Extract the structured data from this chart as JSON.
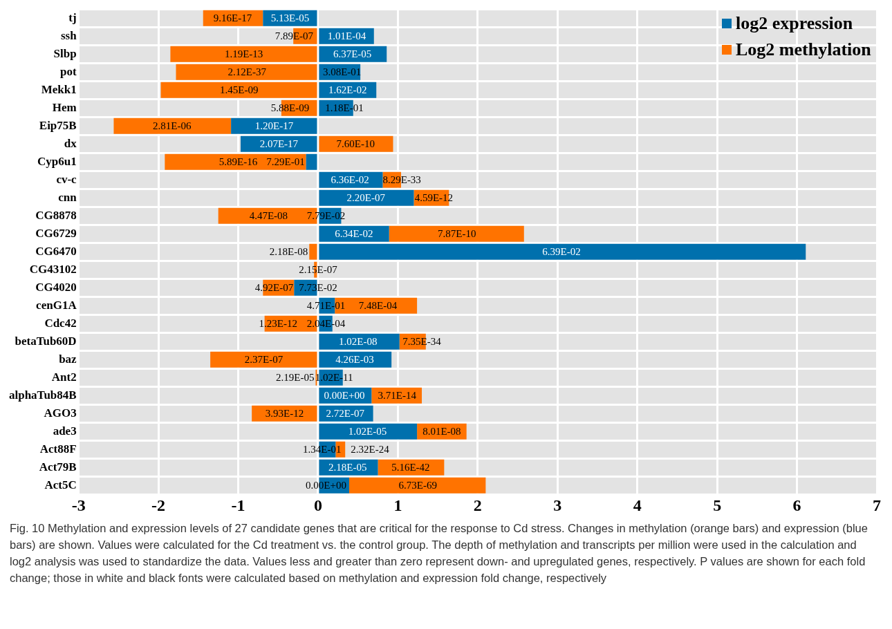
{
  "chart_data": {
    "type": "bar",
    "orientation": "horizontal",
    "stacked": true,
    "categories": [
      "tj",
      "ssh",
      "Slbp",
      "pot",
      "Mekk1",
      "Hem",
      "Eip75B",
      "dx",
      "Cyp6u1",
      "cv-c",
      "cnn",
      "CG8878",
      "CG6729",
      "CG6470",
      "CG43102",
      "CG4020",
      "cenG1A",
      "Cdc42",
      "betaTub60D",
      "baz",
      "Ant2",
      "alphaTub84B",
      "AGO3",
      "ade3",
      "Act88F",
      "Act79B",
      "Act5C"
    ],
    "series": [
      {
        "name": "log2 expression",
        "color": "#0070ad",
        "values": [
          -0.69,
          0.7,
          0.86,
          0.53,
          0.73,
          0.44,
          -1.09,
          -0.97,
          -0.15,
          0.81,
          1.2,
          0.29,
          0.89,
          6.11,
          null,
          -0.3,
          0.21,
          0.18,
          1.02,
          0.92,
          0.31,
          0.67,
          0.69,
          1.24,
          0.22,
          0.75,
          0.39
        ]
      },
      {
        "name": "Log2 methylation",
        "color": "#ff7300",
        "values": [
          -0.75,
          -0.31,
          -1.85,
          -1.78,
          -1.97,
          -0.46,
          -1.47,
          0.94,
          -1.77,
          0.23,
          0.44,
          -1.25,
          1.69,
          -0.11,
          -0.05,
          -0.39,
          1.03,
          -0.67,
          0.33,
          -1.35,
          -0.03,
          0.63,
          -0.83,
          0.62,
          0.12,
          0.83,
          1.71
        ]
      }
    ],
    "xlim": [
      -3,
      7
    ],
    "xticks": [
      -3,
      -2,
      -1,
      0,
      1,
      2,
      3,
      4,
      5,
      6,
      7
    ],
    "grid": true,
    "legend": "top right",
    "annotations": [
      {
        "text": "5.13E-05",
        "x": -0.35,
        "y": "tj"
      },
      {
        "text": "9.16E-17",
        "x": -1.07,
        "y": "tj"
      },
      {
        "text": "7.89E-07",
        "x": -0.3,
        "y": "ssh"
      },
      {
        "text": "1.01E-04",
        "x": 0.36,
        "y": "ssh"
      },
      {
        "text": "1.19E-13",
        "x": -0.93,
        "y": "Slbp"
      },
      {
        "text": "6.37E-05",
        "x": 0.43,
        "y": "Slbp"
      },
      {
        "text": "2.12E-37",
        "x": -0.89,
        "y": "pot"
      },
      {
        "text": "3.08E-01",
        "x": 0.3,
        "y": "pot"
      },
      {
        "text": "1.45E-09",
        "x": -0.99,
        "y": "Mekk1"
      },
      {
        "text": "1.62E-02",
        "x": 0.37,
        "y": "Mekk1"
      },
      {
        "text": "5.88E-09",
        "x": -0.35,
        "y": "Hem"
      },
      {
        "text": "1.18E-01",
        "x": 0.33,
        "y": "Hem"
      },
      {
        "text": "1.20E-17",
        "x": -0.55,
        "y": "Eip75B"
      },
      {
        "text": "2.81E-06",
        "x": -1.83,
        "y": "Eip75B"
      },
      {
        "text": "2.07E-17",
        "x": -0.49,
        "y": "dx"
      },
      {
        "text": "7.60E-10",
        "x": 0.47,
        "y": "dx"
      },
      {
        "text": "5.89E-16",
        "x": -1.0,
        "y": "Cyp6u1"
      },
      {
        "text": "7.29E-01",
        "x": -0.1,
        "y": "Cyp6u1"
      },
      {
        "text": "6.36E-02",
        "x": 0.4,
        "y": "cv-c"
      },
      {
        "text": "8.29E-33",
        "x": 1.05,
        "y": "cv-c"
      },
      {
        "text": "2.20E-07",
        "x": 0.6,
        "y": "cnn"
      },
      {
        "text": "4.59E-12",
        "x": 1.45,
        "y": "cnn"
      },
      {
        "text": "4.47E-08",
        "x": -0.62,
        "y": "CG8878"
      },
      {
        "text": "7.79E-02",
        "x": 0.1,
        "y": "CG8878"
      },
      {
        "text": "6.34E-02",
        "x": 0.45,
        "y": "CG6729"
      },
      {
        "text": "7.87E-10",
        "x": 1.74,
        "y": "CG6729"
      },
      {
        "text": "2.18E-08",
        "x": -0.06,
        "y": "CG6470"
      },
      {
        "text": "6.39E-02",
        "x": 3.05,
        "y": "CG6470"
      },
      {
        "text": "2.15E-07",
        "x": 0.0,
        "y": "CG43102"
      },
      {
        "text": "4.92E-07",
        "x": -0.55,
        "y": "CG4020"
      },
      {
        "text": "7.73E-02",
        "x": 0.0,
        "y": "CG4020"
      },
      {
        "text": "4.71E-01",
        "x": 0.1,
        "y": "cenG1A"
      },
      {
        "text": "7.48E-04",
        "x": 0.75,
        "y": "cenG1A"
      },
      {
        "text": "1.23E-12",
        "x": -0.5,
        "y": "Cdc42"
      },
      {
        "text": "2.04E-04",
        "x": 0.1,
        "y": "Cdc42"
      },
      {
        "text": "1.02E-08",
        "x": 0.5,
        "y": "betaTub60D"
      },
      {
        "text": "7.35E-34",
        "x": 1.3,
        "y": "betaTub60D"
      },
      {
        "text": "2.37E-07",
        "x": -0.68,
        "y": "baz"
      },
      {
        "text": "4.26E-03",
        "x": 0.46,
        "y": "baz"
      },
      {
        "text": "2.19E-05",
        "x": -0.02,
        "y": "Ant2"
      },
      {
        "text": "1.02E-11",
        "x": 0.2,
        "y": "Ant2"
      },
      {
        "text": "0.00E+00",
        "x": 0.33,
        "y": "alphaTub84B"
      },
      {
        "text": "3.71E-14",
        "x": 0.99,
        "y": "alphaTub84B"
      },
      {
        "text": "3.93E-12",
        "x": -0.42,
        "y": "AGO3"
      },
      {
        "text": "2.72E-07",
        "x": 0.34,
        "y": "AGO3"
      },
      {
        "text": "1.02E-05",
        "x": 0.62,
        "y": "ade3"
      },
      {
        "text": "8.01E-08",
        "x": 1.55,
        "y": "ade3"
      },
      {
        "text": "1.34E-01",
        "x": 0.05,
        "y": "Act88F"
      },
      {
        "text": "2.32E-24",
        "x": 0.65,
        "y": "Act88F"
      },
      {
        "text": "2.18E-05",
        "x": 0.37,
        "y": "Act79B"
      },
      {
        "text": "5.16E-42",
        "x": 1.16,
        "y": "Act79B"
      },
      {
        "text": "0.00E+00",
        "x": 0.1,
        "y": "Act5C"
      },
      {
        "text": "6.73E-69",
        "x": 1.25,
        "y": "Act5C"
      },
      "Fig. 10 Methylation and expression levels of 27 candidate genes that are critical for the response to Cd stress. Changes in methylation (orange bars) and expression (blue bars) are shown. Values were calculated for the Cd treatment vs. the control group. The depth of methylation and transcripts per million were used in the calculation and log2 analysis was used to standardize the data. Values less and greater than zero represent down- and upregulated genes, respectively. P values are shown for each fold change; those in white and black fonts were calculated based on methylation and expression fold change, respectively"
    ]
  }
}
